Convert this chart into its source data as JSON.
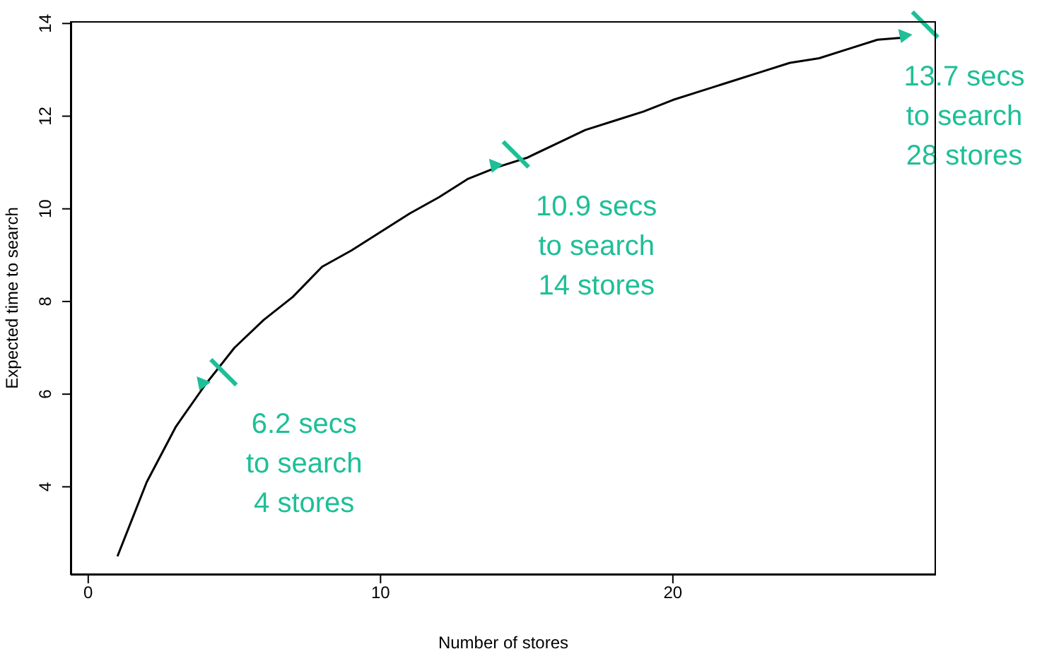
{
  "chart_data": {
    "type": "line",
    "xlabel": "Number of stores",
    "ylabel": "Expected time to search",
    "x": [
      1,
      2,
      3,
      4,
      5,
      6,
      7,
      8,
      9,
      10,
      11,
      12,
      13,
      14,
      15,
      16,
      17,
      18,
      19,
      20,
      21,
      22,
      23,
      24,
      25,
      26,
      27,
      28
    ],
    "series": [
      {
        "color": "#000000",
        "values": [
          2.5,
          4.1,
          5.3,
          6.2,
          7.0,
          7.6,
          8.1,
          8.75,
          9.1,
          9.5,
          9.9,
          10.25,
          10.65,
          10.9,
          11.1,
          11.4,
          11.7,
          11.9,
          12.1,
          12.35,
          12.55,
          12.75,
          12.95,
          13.15,
          13.25,
          13.45,
          13.65,
          13.7
        ]
      }
    ],
    "xlim": [
      -0.6,
      29
    ],
    "xticks": [
      0,
      10,
      20
    ],
    "ylim": [
      2.1,
      14.05
    ],
    "yticks": [
      4,
      6,
      8,
      10,
      12,
      14
    ],
    "grid": false,
    "legend": false,
    "marker": "none",
    "line_style": "solid",
    "annotations": [
      {
        "text": "6.2 secs\nto search\n4 stores",
        "x": 4,
        "y": 6.2
      },
      {
        "text": "10.9 secs\nto search\n14 stores",
        "x": 14,
        "y": 10.9
      },
      {
        "text": "13.7 secs\nto search\n28 stores",
        "x": 28,
        "y": 13.7
      }
    ]
  }
}
